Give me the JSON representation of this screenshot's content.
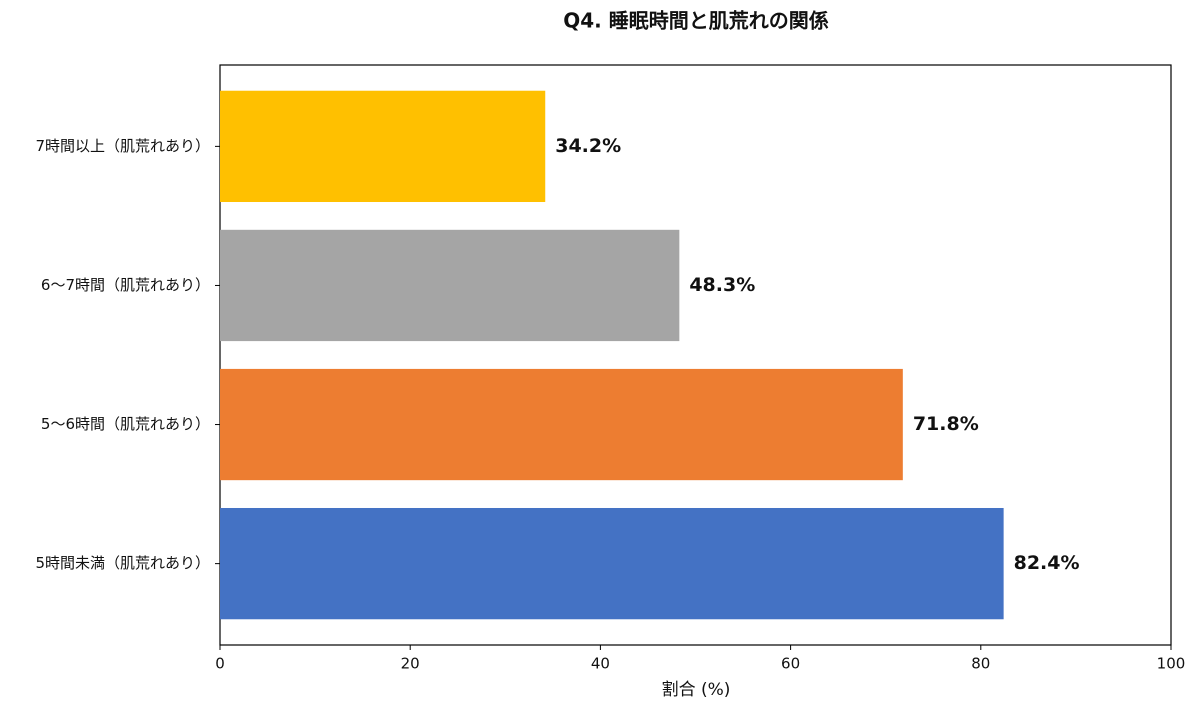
{
  "chart_data": {
    "type": "barh",
    "title": "Q4. 睡眠時間と肌荒れの関係",
    "x_label": "割合 (%)",
    "categories": [
      "5時間未満（肌荒れあり）",
      "5〜6時間（肌荒れあり）",
      "6〜7時間（肌荒れあり）",
      "7時間以上（肌荒れあり）"
    ],
    "values": [
      82.4,
      71.8,
      48.3,
      34.2
    ],
    "value_labels": [
      "82.4%",
      "71.8%",
      "48.3%",
      "34.2%"
    ],
    "colors": [
      "#4472c4",
      "#ed7d31",
      "#a5a5a5",
      "#ffc000"
    ],
    "xlim": [
      0,
      100
    ],
    "xticks": [
      0,
      20,
      40,
      60,
      80,
      100
    ],
    "grid": false
  }
}
